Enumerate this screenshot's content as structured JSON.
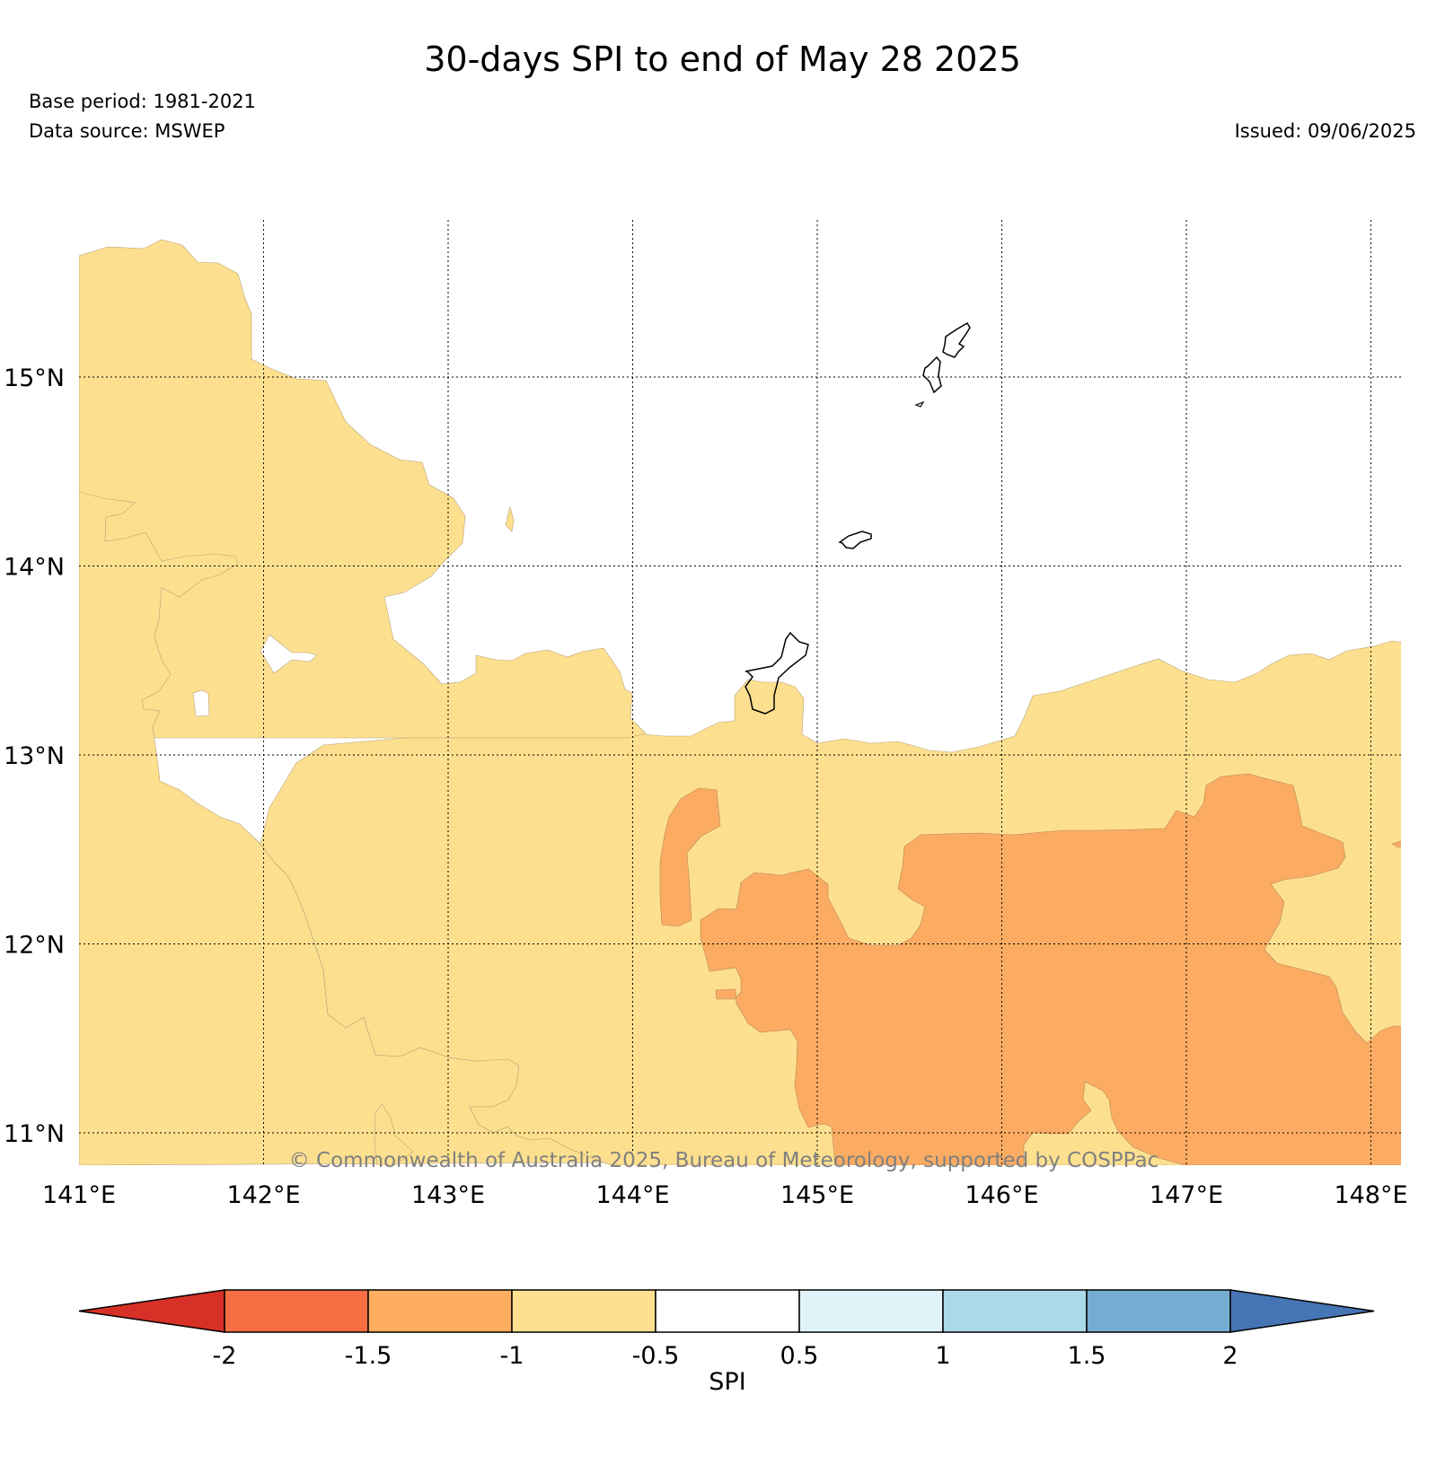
{
  "title": "30-days SPI to end of May 28 2025",
  "base_period": "Base period: 1981-2021",
  "data_source": "Data source: MSWEP",
  "issued": "Issued: 09/06/2025",
  "credit": "© Commonwealth of Australia 2025, Bureau of Meteorology, supported by COSPPac",
  "map": {
    "lon_range": [
      141,
      148.2
    ],
    "lat_range": [
      10.8,
      15.8
    ],
    "lon_ticks": [
      "141°E",
      "142°E",
      "143°E",
      "144°E",
      "145°E",
      "146°E",
      "147°E",
      "148°E"
    ],
    "lat_ticks": [
      "15°N",
      "14°N",
      "13°N",
      "12°N",
      "11°N"
    ],
    "gridlines": true,
    "colors": {
      "spi_minus1_to_minus05": "#fde08f",
      "spi_minus15_to_minus1": "#fbac62",
      "land_outline": "#000000"
    }
  },
  "colorbar": {
    "label": "SPI",
    "ticks": [
      "-2",
      "-1.5",
      "-1",
      "-0.5",
      "0.5",
      "1",
      "1.5",
      "2"
    ],
    "colors": [
      "#d73027",
      "#f46d43",
      "#fdae61",
      "#fee090",
      "#ffffff",
      "#e0f3f8",
      "#abd9e9",
      "#74add1",
      "#4575b4"
    ],
    "extend": "both"
  }
}
